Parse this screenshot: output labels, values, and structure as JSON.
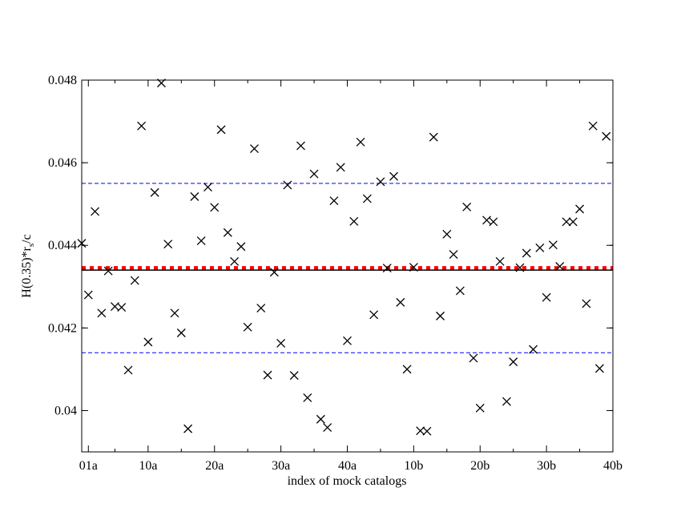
{
  "chart_data": {
    "type": "scatter",
    "xlabel": "index of mock catalogs",
    "ylabel_main": "H(0.35)*r",
    "ylabel_sub": "s",
    "ylabel_tail": "/c",
    "xlim": [
      0,
      80
    ],
    "ylim": [
      0.039,
      0.048
    ],
    "x_ticks": [
      {
        "x": 1,
        "label": "01a"
      },
      {
        "x": 10,
        "label": "10a"
      },
      {
        "x": 20,
        "label": "20a"
      },
      {
        "x": 30,
        "label": "30a"
      },
      {
        "x": 40,
        "label": "40a"
      },
      {
        "x": 50,
        "label": "10b"
      },
      {
        "x": 60,
        "label": "20b"
      },
      {
        "x": 70,
        "label": "30b"
      },
      {
        "x": 80,
        "label": "40b"
      }
    ],
    "y_ticks": [
      {
        "y": 0.04,
        "label": "0.04"
      },
      {
        "y": 0.042,
        "label": "0.042"
      },
      {
        "y": 0.044,
        "label": "0.044"
      },
      {
        "y": 0.046,
        "label": "0.046"
      },
      {
        "y": 0.048,
        "label": "0.048"
      }
    ],
    "reference_lines": [
      {
        "y": 0.0455,
        "style": "dashed",
        "color": "#0000ff"
      },
      {
        "y": 0.0414,
        "style": "dashed",
        "color": "#0000ff"
      },
      {
        "y": 0.04345,
        "style": "dotted-thick",
        "color": "#ff0000"
      },
      {
        "y": 0.0434,
        "style": "solid",
        "color": "#000000"
      }
    ],
    "marker": "x",
    "marker_color": "#000000",
    "points": [
      [
        0,
        0.04405
      ],
      [
        1,
        0.0428
      ],
      [
        2,
        0.04482
      ],
      [
        3,
        0.04236
      ],
      [
        4,
        0.04338
      ],
      [
        5,
        0.04252
      ],
      [
        6,
        0.0425
      ],
      [
        7,
        0.04098
      ],
      [
        8,
        0.04315
      ],
      [
        9,
        0.04689
      ],
      [
        10,
        0.04166
      ],
      [
        11,
        0.04528
      ],
      [
        12,
        0.04793
      ],
      [
        13,
        0.04403
      ],
      [
        14,
        0.04236
      ],
      [
        15,
        0.04188
      ],
      [
        16,
        0.03956
      ],
      [
        17,
        0.04518
      ],
      [
        18,
        0.04411
      ],
      [
        19,
        0.04541
      ],
      [
        20,
        0.04492
      ],
      [
        21,
        0.0468
      ],
      [
        22,
        0.04431
      ],
      [
        23,
        0.04361
      ],
      [
        24,
        0.04397
      ],
      [
        25,
        0.04202
      ],
      [
        26,
        0.04634
      ],
      [
        27,
        0.04248
      ],
      [
        28,
        0.04086
      ],
      [
        29,
        0.04335
      ],
      [
        30,
        0.04163
      ],
      [
        31,
        0.04546
      ],
      [
        32,
        0.04085
      ],
      [
        33,
        0.04641
      ],
      [
        34,
        0.04031
      ],
      [
        35,
        0.04573
      ],
      [
        36,
        0.03979
      ],
      [
        37,
        0.03959
      ],
      [
        38,
        0.04508
      ],
      [
        39,
        0.04589
      ],
      [
        40,
        0.04169
      ],
      [
        41,
        0.04458
      ],
      [
        42,
        0.0465
      ],
      [
        43,
        0.04513
      ],
      [
        44,
        0.04232
      ],
      [
        45,
        0.04554
      ],
      [
        46,
        0.04345
      ],
      [
        47,
        0.04567
      ],
      [
        48,
        0.04262
      ],
      [
        49,
        0.041
      ],
      [
        50,
        0.04347
      ],
      [
        51,
        0.03951
      ],
      [
        52,
        0.0395
      ],
      [
        53,
        0.04662
      ],
      [
        54,
        0.04229
      ],
      [
        55,
        0.04427
      ],
      [
        56,
        0.04378
      ],
      [
        57,
        0.0429
      ],
      [
        58,
        0.04493
      ],
      [
        59,
        0.04127
      ],
      [
        60,
        0.04006
      ],
      [
        61,
        0.04461
      ],
      [
        62,
        0.04457
      ],
      [
        63,
        0.04361
      ],
      [
        64,
        0.04022
      ],
      [
        65,
        0.04118
      ],
      [
        66,
        0.04346
      ],
      [
        67,
        0.04381
      ],
      [
        68,
        0.04148
      ],
      [
        69,
        0.04394
      ],
      [
        70,
        0.04274
      ],
      [
        71,
        0.04401
      ],
      [
        72,
        0.04349
      ],
      [
        73,
        0.04457
      ],
      [
        74,
        0.04457
      ],
      [
        75,
        0.04488
      ],
      [
        76,
        0.04259
      ],
      [
        77,
        0.04689
      ],
      [
        78,
        0.04102
      ],
      [
        79,
        0.04664
      ]
    ]
  }
}
